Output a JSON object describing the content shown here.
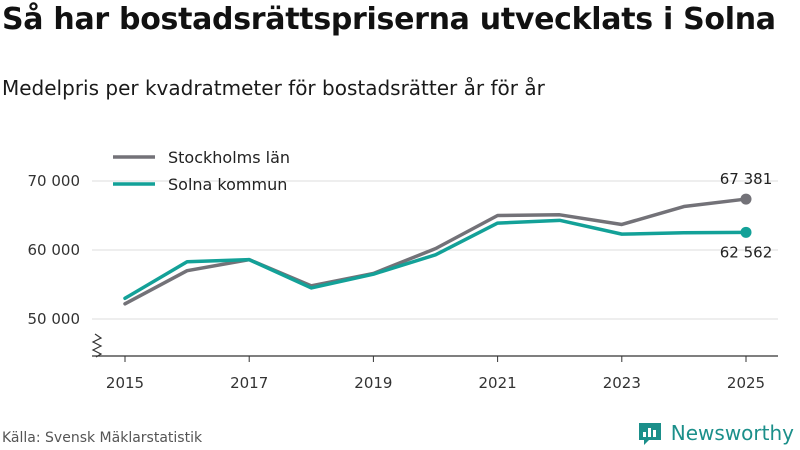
{
  "title": "Så har bostadsrättspriserna utvecklats i Solna",
  "subtitle": "Medelpris per kvadratmeter för bostadsrätter år för år",
  "source": "Källa: Svensk Mäklarstatistik",
  "brand": "Newsworthy",
  "colors": {
    "stockholm": "#737278",
    "solna": "#13a198",
    "grid": "#dddddd",
    "brand": "#1b8f8a"
  },
  "chart_data": {
    "type": "line",
    "x": [
      2015,
      2016,
      2017,
      2018,
      2019,
      2020,
      2021,
      2022,
      2023,
      2024,
      2025
    ],
    "x_ticks": [
      "2015",
      "2017",
      "2019",
      "2021",
      "2023",
      "2025"
    ],
    "y_ticks": [
      "50 000",
      "60 000",
      "70 000"
    ],
    "ylim": [
      45000,
      72000
    ],
    "series": [
      {
        "name": "Stockholms län",
        "values": [
          52200,
          57000,
          58600,
          54800,
          56600,
          60200,
          65000,
          65100,
          63700,
          66300,
          67381
        ],
        "end_label": "67 381"
      },
      {
        "name": "Solna kommun",
        "values": [
          53000,
          58300,
          58600,
          54500,
          56500,
          59300,
          63900,
          64300,
          62300,
          62500,
          62562
        ],
        "end_label": "62 562"
      }
    ]
  }
}
